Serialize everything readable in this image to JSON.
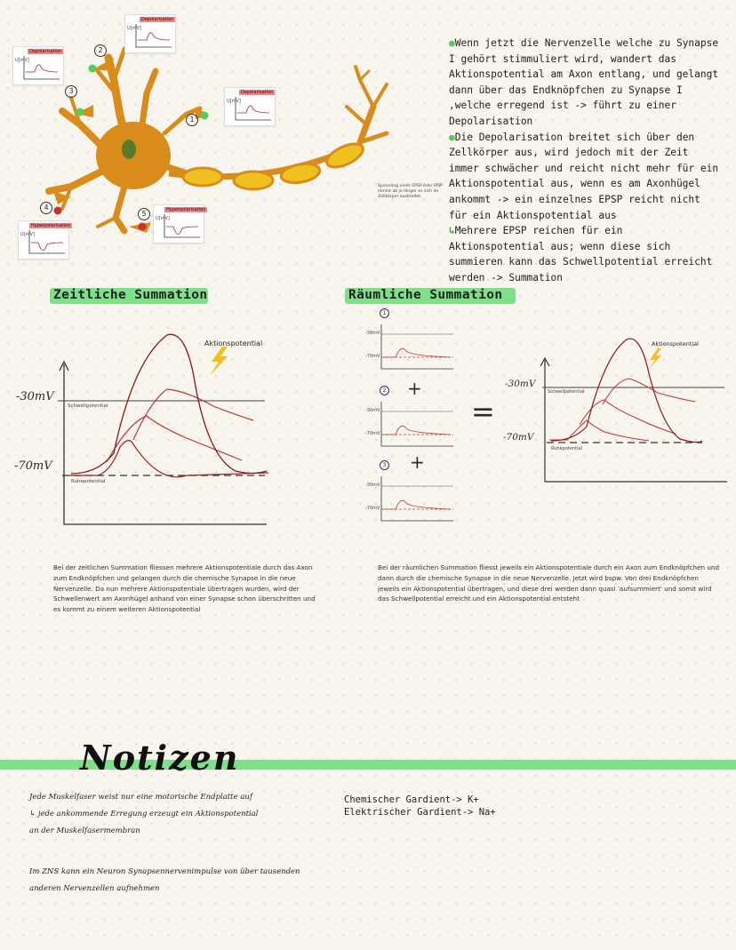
{
  "intro": {
    "paragraphs": [
      {
        "bullet": "dot",
        "text": "Wenn jetzt die Nervenzelle welche zu Synapse I gehört stimmuliert wird, wandert das Aktionspotential am Axon entlang, und gelangt dann über das Endknöpfchen zu Synapse I ,welche erregend ist -> führt zu einer Depolarisation"
      },
      {
        "bullet": "dot",
        "text": "Die Depolarisation breitet sich über den Zellkörper aus, wird jedoch mit der Zeit immer schwächer und reicht nicht mehr für ein Aktionspotential aus, wenn es am Axonhügel ankommt -> ein einzelnes EPSP reicht nicht für ein Aktionspotential aus"
      },
      {
        "bullet": "arrow",
        "text": "Mehrere EPSP reichen für ein Aktionspotential aus; wenn diese sich summieren kann das Schwellpotential erreicht werden -> Summation"
      }
    ],
    "note": "Spannung eines EPSP oder IPSP nimmt ab je länger es sich im Zellkörper ausbreitet"
  },
  "neuron": {
    "labels": [
      "1",
      "2",
      "3",
      "4",
      "5"
    ],
    "inset_titles": [
      "Depolarisation",
      "Depolarisation",
      "Depolarisation",
      "Hyperpolarisation",
      "Hyperpolarisation"
    ],
    "axis_label": "U[mV]"
  },
  "zeitlich": {
    "title": "Zeitliche Summation",
    "y_labels": [
      "-30mV",
      "-70mV"
    ],
    "schwell_label": "Schwellpotential",
    "ruhe_label": "Ruhepotential",
    "ap_label": "Aktionspotential",
    "text": "Bei der zeitlichen Summation fliessen mehrere Aktionspotentiale durch das Axon zum Endknöpfchen und gelangen durch die chemische Synapse in die neue Nervenzelle. Da nun mehrere Aktionspotentiale übertragen wurden, wird der Schwellenwert am Axonhügel anhand von einer Synapse schon überschritten und es kommt zu einem weiteren Aktionspotential"
  },
  "raeumlich": {
    "title": "Räumliche Summation",
    "small_labels": [
      "1",
      "2",
      "3"
    ],
    "small_y": [
      "-30mV",
      "-70mV"
    ],
    "plus": "+",
    "equals": "=",
    "y_labels": [
      "-30mV",
      "-70mV"
    ],
    "schwell_label": "Schwellpotential",
    "ruhe_label": "Ruhepotential",
    "ap_label": "Aktionspotential",
    "text": "Bei der räumlichen Summation fliesst jeweils ein Aktionspotentiale durch ein Axon zum Endknöpfchen und dann durch die chemische Synapse in die neue Nervenzelle. Jetzt wird bspw. Von drei Endknöpfchen jeweils ein Aktionspotential übertragen, und diese drei werden dann quasi 'aufsummiert' und somit wird das Schwellpotential erreicht und ein Aktionspotential entsteht"
  },
  "notizen": {
    "title": "Notizen",
    "left_lines": [
      "Jede Muskelfaser weist nur eine motorische Endplatte auf",
      "↳ jede ankommende Erregung erzeugt ein Aktionspotential",
      "an der Muskelfasermembran"
    ],
    "left_lines2": [
      "Im ZNS kann ein Neuron Synapsennervenimpulse von über tausenden",
      "anderen Nervenzellen aufnehmen"
    ],
    "right_lines": [
      "Chemischer Gardient-> K+",
      "Elektrischer Gardient-> Na+"
    ]
  },
  "colors": {
    "accent": "#7fe08a",
    "neuron": "#d98c1a",
    "myelin": "#f0c020",
    "curve": "#a52020"
  }
}
